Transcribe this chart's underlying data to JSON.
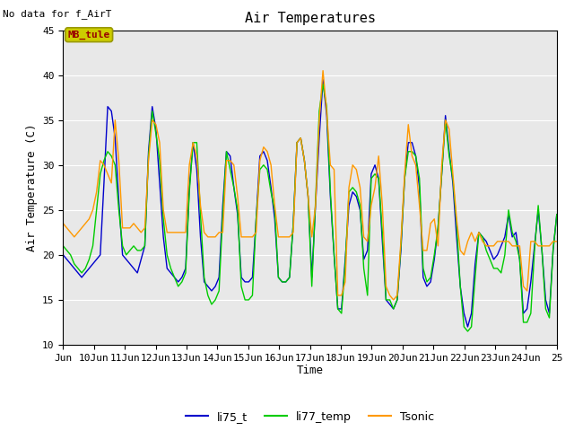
{
  "title": "Air Temperatures",
  "top_left_text": "No data for f_AirT",
  "xlabel": "Time",
  "ylabel": "Air Temperature (C)",
  "ylim": [
    10,
    45
  ],
  "xlim": [
    9,
    25
  ],
  "xtick_labels": [
    "Jun",
    "10Jun",
    "11Jun",
    "12Jun",
    "13Jun",
    "14Jun",
    "15Jun",
    "16Jun",
    "17Jun",
    "18Jun",
    "19Jun",
    "20Jun",
    "21Jun",
    "22Jun",
    "23Jun",
    "24Jun",
    "25"
  ],
  "xtick_positions": [
    9,
    10,
    11,
    12,
    13,
    14,
    15,
    16,
    17,
    18,
    19,
    20,
    21,
    22,
    23,
    24,
    25
  ],
  "ytick_positions": [
    10,
    15,
    20,
    25,
    30,
    35,
    40,
    45
  ],
  "line_colors": {
    "li75_t": "#0000cc",
    "li77_temp": "#00cc00",
    "Tsonic": "#ff9900"
  },
  "legend_label": "MB_tule",
  "legend_box_facecolor": "#cccc00",
  "legend_box_edgecolor": "#999900",
  "legend_text_color": "#990000",
  "plot_bg_color": "#e8e8e8",
  "fig_bg_color": "#ffffff",
  "grid_color": "#ffffff",
  "title_fontsize": 11,
  "label_fontsize": 9,
  "tick_fontsize": 8,
  "li75_t": [
    20.0,
    19.5,
    19.0,
    18.5,
    18.0,
    17.5,
    18.0,
    18.5,
    19.0,
    19.5,
    20.0,
    28.0,
    36.5,
    36.0,
    33.0,
    26.0,
    20.0,
    19.5,
    19.0,
    18.5,
    18.0,
    19.5,
    21.0,
    31.5,
    36.5,
    34.0,
    28.0,
    22.0,
    18.5,
    18.0,
    17.5,
    17.0,
    17.5,
    18.5,
    27.5,
    32.5,
    29.5,
    22.0,
    17.0,
    16.5,
    16.0,
    16.5,
    17.5,
    25.5,
    31.5,
    31.0,
    27.5,
    24.5,
    17.5,
    17.0,
    17.0,
    17.5,
    24.0,
    31.0,
    31.5,
    30.5,
    27.5,
    24.0,
    17.5,
    17.0,
    17.0,
    17.5,
    23.5,
    32.5,
    33.0,
    30.5,
    26.5,
    17.5,
    25.5,
    33.0,
    39.5,
    35.5,
    26.5,
    20.0,
    14.0,
    14.0,
    19.5,
    25.5,
    27.0,
    26.5,
    25.0,
    19.5,
    20.5,
    29.0,
    30.0,
    28.5,
    21.5,
    15.0,
    14.5,
    14.0,
    15.0,
    20.5,
    28.5,
    32.5,
    32.5,
    31.0,
    27.5,
    17.5,
    16.5,
    17.0,
    19.5,
    23.0,
    29.0,
    35.5,
    31.5,
    28.0,
    22.0,
    16.5,
    13.5,
    12.0,
    13.5,
    19.0,
    22.5,
    22.0,
    21.5,
    20.5,
    19.5,
    20.0,
    21.0,
    22.0,
    24.5,
    22.0,
    22.5,
    19.5,
    13.5,
    14.0,
    17.0,
    21.0,
    25.0,
    20.5,
    15.0,
    13.5,
    20.5,
    24.5
  ],
  "li77_temp": [
    21.0,
    20.5,
    20.0,
    19.0,
    18.5,
    18.0,
    18.5,
    19.5,
    21.0,
    25.0,
    29.0,
    30.5,
    31.5,
    31.0,
    30.0,
    25.0,
    21.0,
    20.0,
    20.5,
    21.0,
    20.5,
    20.5,
    21.0,
    31.0,
    36.0,
    33.5,
    30.5,
    24.0,
    20.0,
    18.5,
    17.5,
    16.5,
    17.0,
    18.0,
    27.0,
    32.5,
    32.5,
    24.5,
    17.5,
    15.5,
    14.5,
    15.0,
    16.0,
    24.5,
    31.5,
    29.5,
    27.5,
    25.0,
    16.5,
    15.0,
    15.0,
    15.5,
    24.0,
    29.5,
    30.0,
    29.5,
    27.0,
    25.0,
    17.5,
    17.0,
    17.0,
    17.5,
    23.5,
    32.5,
    33.0,
    30.5,
    26.5,
    16.5,
    26.0,
    36.0,
    39.0,
    36.5,
    27.0,
    20.0,
    14.0,
    13.5,
    19.0,
    27.0,
    27.5,
    27.0,
    25.5,
    18.5,
    15.5,
    28.5,
    29.0,
    28.5,
    22.5,
    15.0,
    15.0,
    14.0,
    15.0,
    21.0,
    28.5,
    31.5,
    31.5,
    31.0,
    28.5,
    18.5,
    17.0,
    17.5,
    20.0,
    23.0,
    29.0,
    35.0,
    31.0,
    28.5,
    23.5,
    16.5,
    12.0,
    11.5,
    12.0,
    17.5,
    22.5,
    22.0,
    20.5,
    19.5,
    18.5,
    18.5,
    18.0,
    20.0,
    25.0,
    22.5,
    21.5,
    19.5,
    12.5,
    12.5,
    13.5,
    20.5,
    25.5,
    20.5,
    14.0,
    13.0,
    20.5,
    24.5
  ],
  "Tsonic": [
    23.5,
    23.0,
    22.5,
    22.0,
    22.5,
    23.0,
    23.5,
    24.0,
    25.0,
    27.0,
    30.5,
    30.0,
    29.0,
    28.0,
    35.0,
    30.5,
    23.0,
    23.0,
    23.0,
    23.5,
    23.0,
    22.5,
    23.0,
    30.5,
    35.0,
    34.5,
    32.5,
    25.0,
    22.5,
    22.5,
    22.5,
    22.5,
    22.5,
    22.5,
    30.0,
    32.5,
    31.0,
    25.5,
    22.5,
    22.0,
    22.0,
    22.0,
    22.5,
    22.5,
    30.5,
    30.5,
    30.0,
    26.5,
    22.0,
    22.0,
    22.0,
    22.0,
    22.5,
    30.5,
    32.0,
    31.5,
    30.0,
    25.5,
    22.0,
    22.0,
    22.0,
    22.0,
    22.5,
    32.5,
    33.0,
    30.5,
    26.5,
    22.0,
    25.5,
    35.0,
    40.5,
    36.0,
    30.0,
    29.5,
    15.5,
    15.5,
    17.0,
    27.5,
    30.0,
    29.5,
    27.5,
    22.0,
    21.5,
    25.5,
    27.5,
    31.0,
    25.5,
    16.5,
    15.5,
    15.0,
    15.5,
    21.5,
    29.0,
    34.5,
    31.0,
    30.0,
    25.5,
    20.5,
    20.5,
    23.5,
    24.0,
    21.0,
    30.0,
    35.0,
    34.0,
    29.0,
    24.0,
    20.5,
    20.0,
    21.5,
    22.5,
    21.5,
    22.5,
    21.5,
    21.0,
    21.0,
    21.0,
    21.5,
    21.5,
    21.5,
    21.5,
    21.0,
    21.0,
    21.0,
    16.5,
    16.0,
    21.5,
    21.5,
    21.0,
    21.0,
    21.0,
    21.0,
    21.5,
    21.5
  ]
}
